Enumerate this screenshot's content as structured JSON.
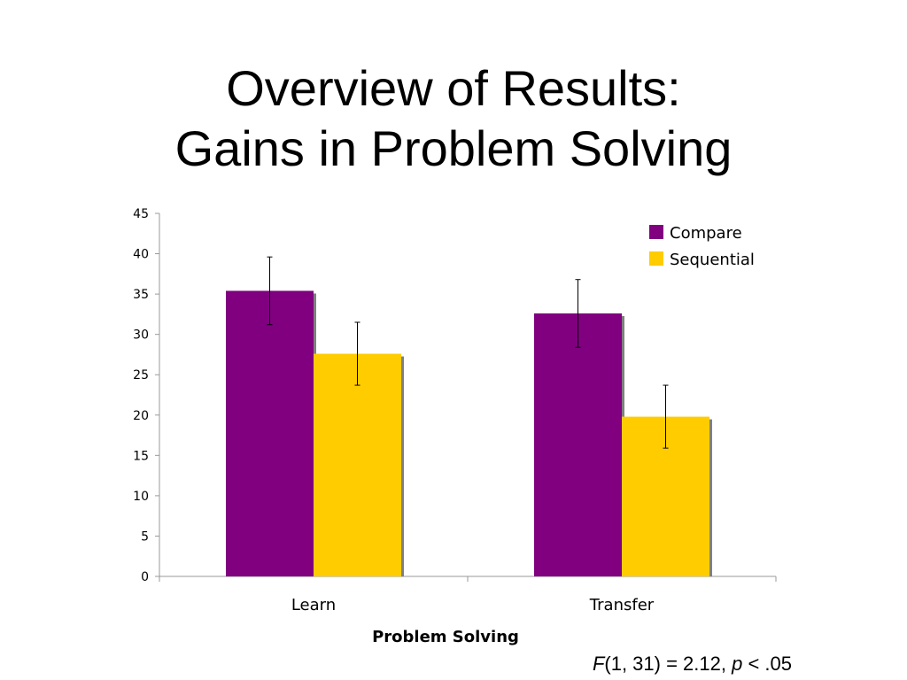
{
  "slide": {
    "title_line1": "Overview of Results:",
    "title_line2": "Gains in Problem Solving",
    "stats_note": {
      "f_symbol": "F",
      "f_args": "(1, 31) = 2.12, ",
      "p_symbol": "p",
      "p_value": " < .05"
    }
  },
  "chart_data": {
    "type": "bar",
    "categories": [
      "Learn",
      "Transfer"
    ],
    "series": [
      {
        "name": "Compare",
        "values": [
          35.4,
          32.6
        ],
        "error": [
          4.2,
          4.2
        ],
        "color": "#800080"
      },
      {
        "name": "Sequential",
        "values": [
          27.6,
          19.8
        ],
        "error": [
          3.9,
          3.9
        ],
        "color": "#FFCC00"
      }
    ],
    "xlabel": "Problem Solving",
    "ylabel": "",
    "ylim": [
      0,
      45
    ],
    "yticks": [
      0,
      5,
      10,
      15,
      20,
      25,
      30,
      35,
      40,
      45
    ],
    "grid": false,
    "legend_position": "top-right"
  }
}
